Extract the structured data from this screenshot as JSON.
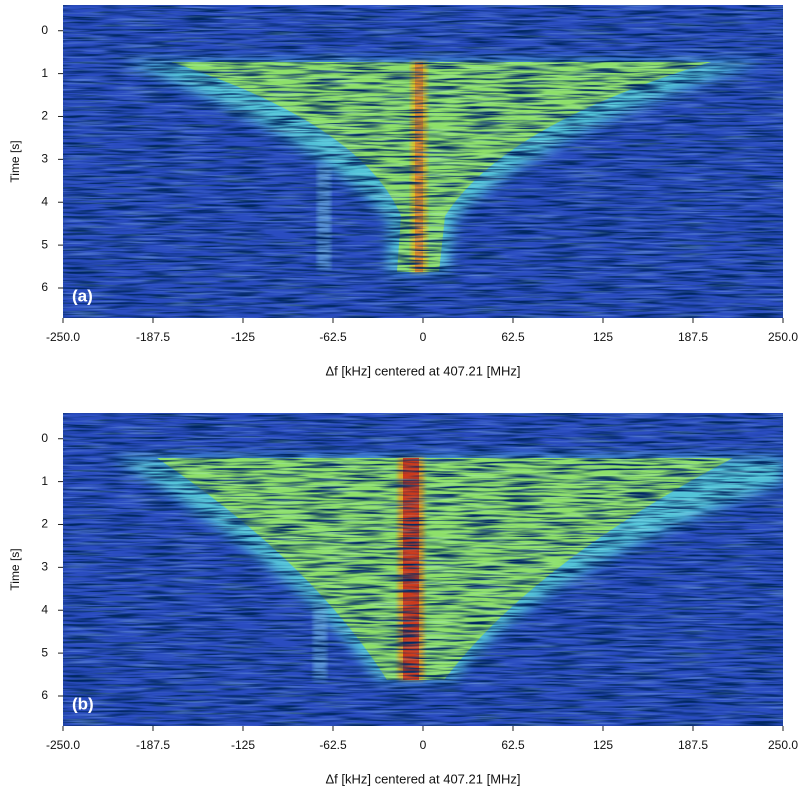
{
  "chart_data": [
    {
      "type": "spectrogram",
      "panel_label": "(a)",
      "xlabel": "Δf [kHz] centered at 407.21 [MHz]",
      "ylabel": "Time [s]",
      "xlim": [
        -250,
        250
      ],
      "ylim": [
        6.7,
        -0.6
      ],
      "xticks": [
        {
          "value": -250,
          "label": "-250.0"
        },
        -187.5,
        -125,
        -62.5,
        0,
        62.5,
        125,
        187.5,
        {
          "value": 250,
          "label": "250.0"
        }
      ],
      "yticks": [
        0,
        1,
        2,
        3,
        4,
        5,
        6
      ]
    },
    {
      "type": "spectrogram",
      "panel_label": "(b)",
      "xlabel": "Δf [kHz] centered at 407.21 [MHz]",
      "ylabel": "Time [s]",
      "xlim": [
        -250,
        250
      ],
      "ylim": [
        6.7,
        -0.6
      ],
      "xticks": [
        {
          "value": -250,
          "label": "-250.0"
        },
        -187.5,
        -125,
        -62.5,
        0,
        62.5,
        125,
        187.5,
        {
          "value": 250,
          "label": "250.0"
        }
      ],
      "yticks": [
        0,
        1,
        2,
        3,
        4,
        5,
        6
      ]
    }
  ]
}
